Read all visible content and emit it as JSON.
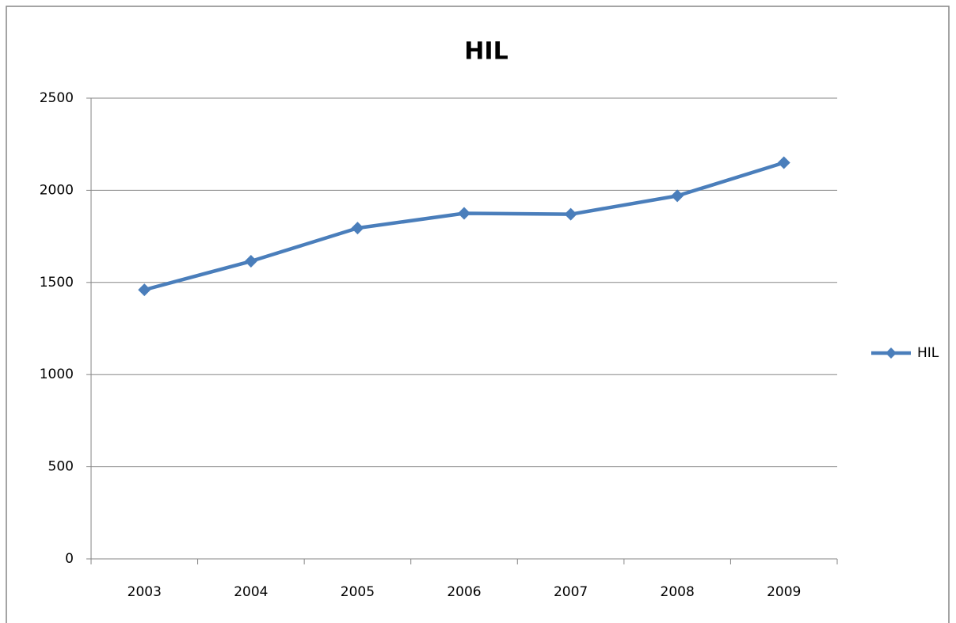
{
  "chart_data": {
    "type": "line",
    "title": "HIL",
    "categories": [
      "2003",
      "2004",
      "2005",
      "2006",
      "2007",
      "2008",
      "2009"
    ],
    "series": [
      {
        "name": "HIL",
        "color": "#4a7ebb",
        "values": [
          1460,
          1615,
          1795,
          1875,
          1870,
          1970,
          2150
        ]
      }
    ],
    "ylim": [
      0,
      2500
    ],
    "yticks": [
      0,
      500,
      1000,
      1500,
      2000,
      2500
    ],
    "grid": true,
    "legend": "right"
  }
}
